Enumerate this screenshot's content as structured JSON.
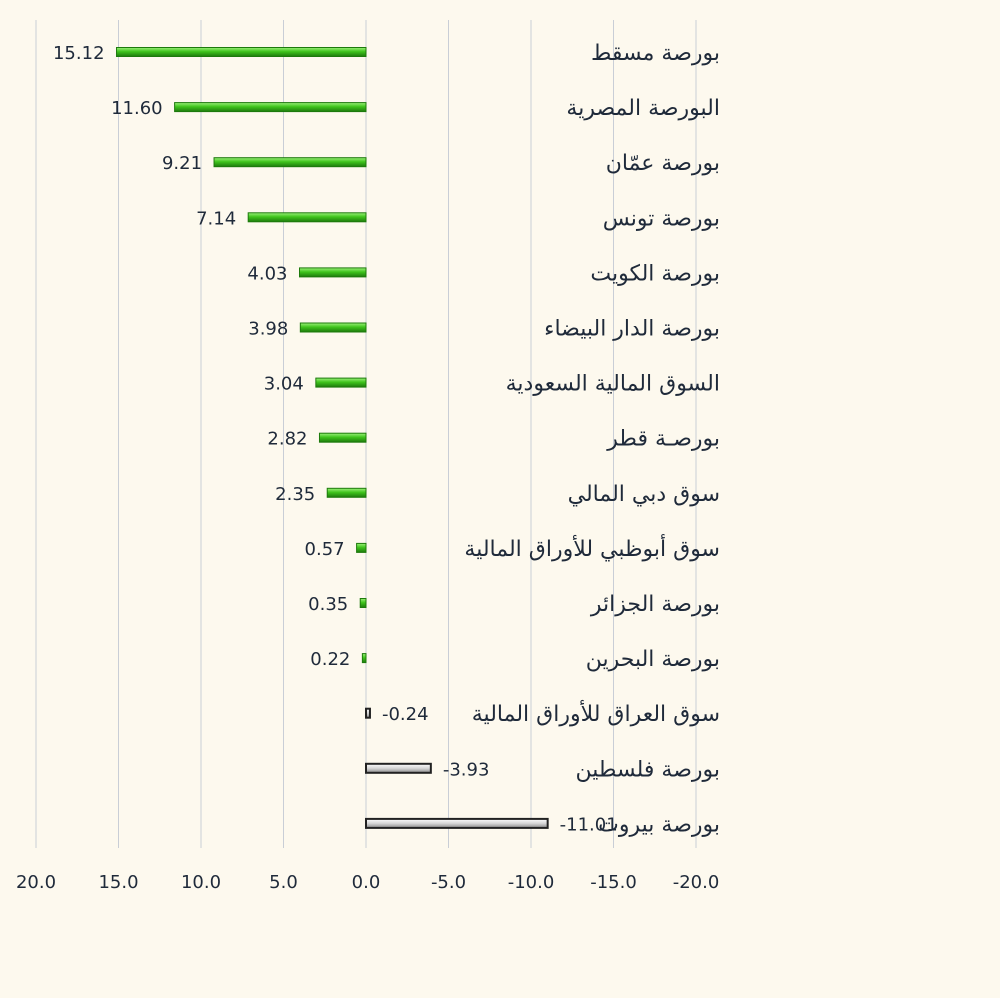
{
  "chart_data": {
    "type": "bar",
    "orientation": "horizontal",
    "x_reversed": true,
    "categories": [
      "بورصة مسقط",
      "البورصة المصرية",
      "بورصة عمّان",
      "بورصة تونس",
      "بورصة الكويت",
      "بورصة الدار البيضاء",
      "السوق المالية السعودية",
      "بورصـة قطر",
      "سوق دبي المالي",
      "سوق أبوظبي للأوراق المالية",
      "بورصة الجزائر",
      "بورصة البحرين",
      "سوق العراق للأوراق المالية",
      "بورصة فلسطين",
      "بورصة بيروت"
    ],
    "values": [
      15.12,
      11.6,
      9.21,
      7.14,
      4.03,
      3.98,
      3.04,
      2.82,
      2.35,
      0.57,
      0.35,
      0.22,
      -0.24,
      -3.93,
      -11.01
    ],
    "value_labels": [
      "15.12",
      "11.60",
      "9.21",
      "7.14",
      "4.03",
      "3.98",
      "3.04",
      "2.82",
      "2.35",
      "0.57",
      "0.35",
      "0.22",
      "-0.24",
      "-3.93",
      "-11.01"
    ],
    "xlim": [
      20,
      -20
    ],
    "xticks": [
      20,
      15,
      10,
      5,
      0,
      -5,
      -10,
      -15,
      -20
    ],
    "xtick_labels": [
      "20.0",
      "15.0",
      "10.0",
      "5.0",
      "0.0",
      "-5.0",
      "-10.0",
      "-15.0",
      "-20.0"
    ],
    "title": "",
    "xlabel": "",
    "ylabel": "",
    "grid": "vertical",
    "colors": {
      "positive": "#3fc41c",
      "positive_dark": "#1d7a0c",
      "positive_light": "#9cf07a",
      "negative": "#d6d6d6",
      "negative_dark": "#222222",
      "grid": "#c9ced6",
      "text": "#1f2a3a",
      "background": "#fdf9ee"
    }
  }
}
